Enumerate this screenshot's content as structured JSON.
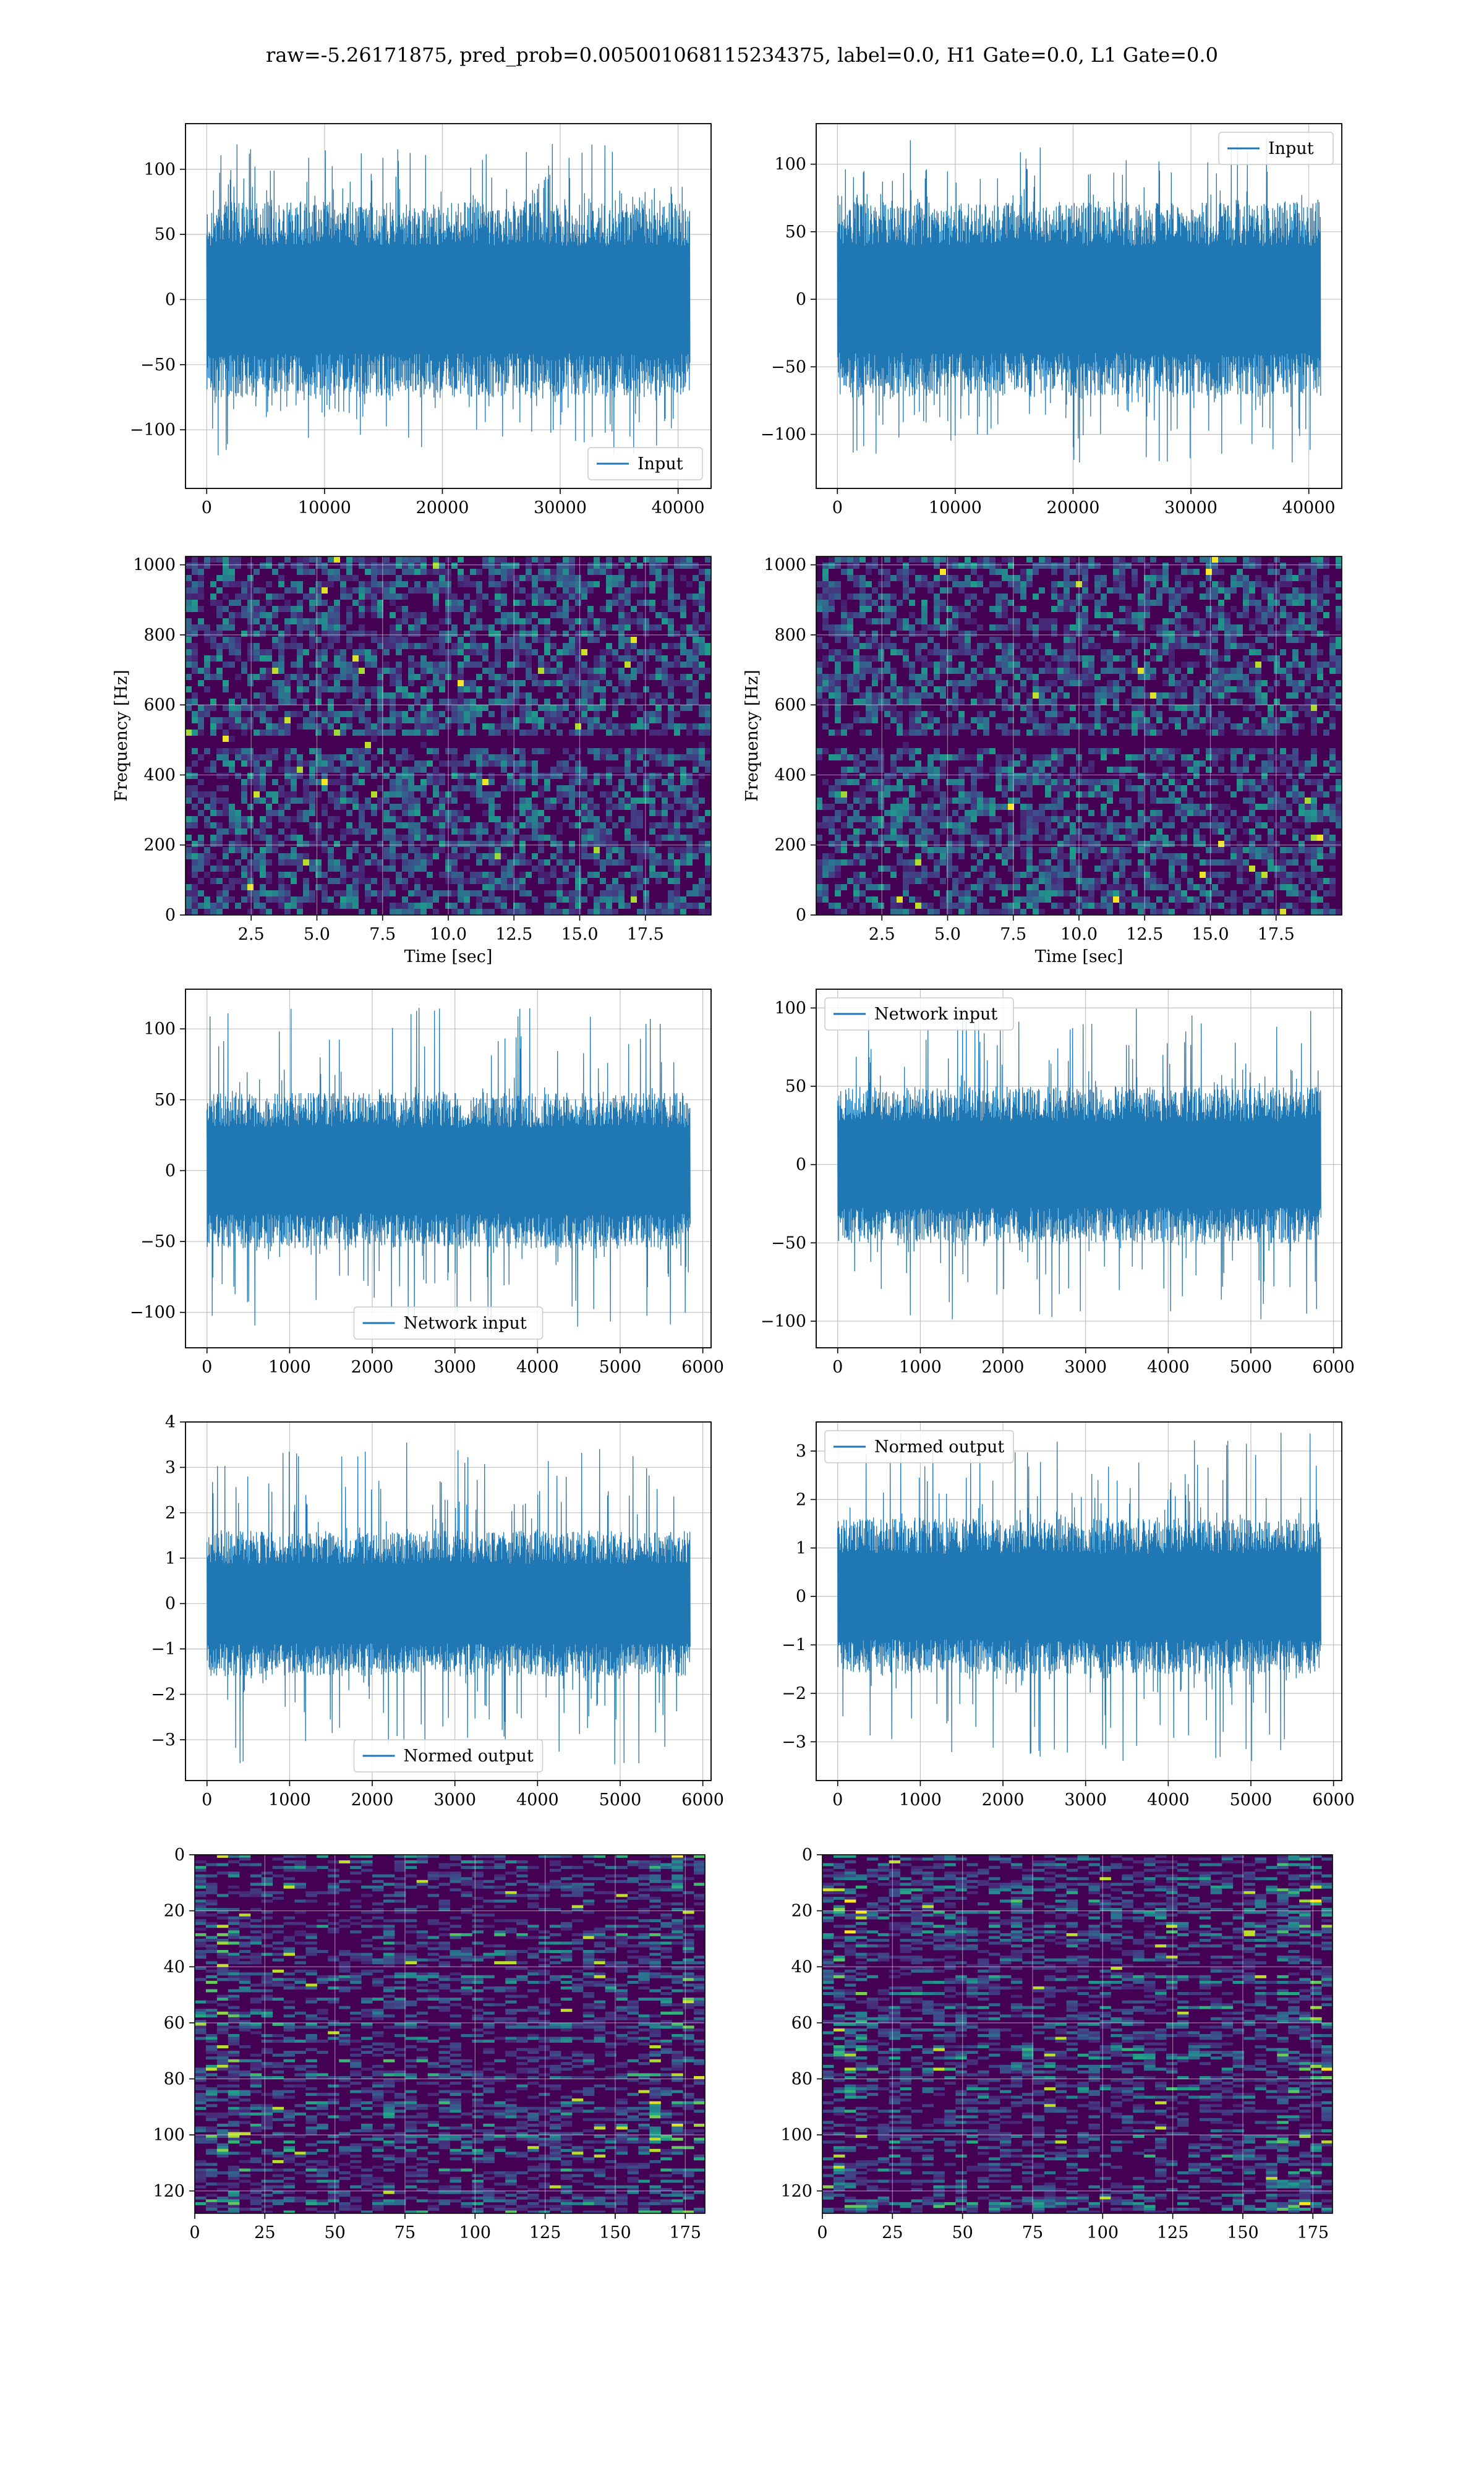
{
  "figure": {
    "title": "raw=-5.26171875, pred_prob=0.005001068115234375, label=0.0, H1 Gate=0.0, L1 Gate=0.0"
  },
  "colors": {
    "line": "#1f77b4",
    "grid": "#b0b0b0",
    "viridis_dark": "#440154",
    "viridis_mid": "#21918c",
    "viridis_bright": "#fde725"
  },
  "chart_data": [
    {
      "id": "input-h1",
      "type": "line",
      "series": [
        {
          "name": "Input",
          "values_summary": "noise roughly between -130 and 125"
        }
      ],
      "x_range": [
        0,
        40960
      ],
      "xlim": [
        -1800,
        42800
      ],
      "ylim": [
        -145,
        135
      ],
      "xticks": [
        "0",
        "10000",
        "20000",
        "30000",
        "40000"
      ],
      "xtick_values": [
        0,
        10000,
        20000,
        30000,
        40000
      ],
      "yticks": [
        "−100",
        "−50",
        "0",
        "50",
        "100"
      ],
      "ytick_values": [
        -100,
        -50,
        0,
        50,
        100
      ],
      "envelope": 75,
      "peak": 120,
      "legend": "lower right",
      "legend_label": "Input",
      "grid": true
    },
    {
      "id": "input-l1",
      "type": "line",
      "series": [
        {
          "name": "Input",
          "values_summary": "noise roughly between -125 and 125"
        }
      ],
      "x_range": [
        0,
        40960
      ],
      "xlim": [
        -1800,
        42800
      ],
      "ylim": [
        -140,
        130
      ],
      "xticks": [
        "0",
        "10000",
        "20000",
        "30000",
        "40000"
      ],
      "xtick_values": [
        0,
        10000,
        20000,
        30000,
        40000
      ],
      "yticks": [
        "−100",
        "−50",
        "0",
        "50",
        "100"
      ],
      "ytick_values": [
        -100,
        -50,
        0,
        50,
        100
      ],
      "envelope": 72,
      "peak": 122,
      "legend": "upper right",
      "legend_label": "Input",
      "grid": true
    },
    {
      "id": "spectrogram-h1",
      "type": "heatmap",
      "xlabel": "Time [sec]",
      "ylabel": "Frequency [Hz]",
      "xlim": [
        0,
        20
      ],
      "ylim": [
        0,
        1024
      ],
      "xticks": [
        "2.5",
        "5.0",
        "7.5",
        "10.0",
        "12.5",
        "15.0",
        "17.5"
      ],
      "xtick_values": [
        2.5,
        5.0,
        7.5,
        10.0,
        12.5,
        15.0,
        17.5
      ],
      "yticks": [
        "0",
        "200",
        "400",
        "600",
        "800",
        "1000"
      ],
      "ytick_values": [
        0,
        200,
        400,
        600,
        800,
        1000
      ],
      "colormap": "viridis",
      "dark_band_hz": 500,
      "grid": true
    },
    {
      "id": "spectrogram-l1",
      "type": "heatmap",
      "xlabel": "Time [sec]",
      "ylabel": "Frequency [Hz]",
      "xlim": [
        0,
        20
      ],
      "ylim": [
        0,
        1024
      ],
      "xticks": [
        "2.5",
        "5.0",
        "7.5",
        "10.0",
        "12.5",
        "15.0",
        "17.5"
      ],
      "xtick_values": [
        2.5,
        5.0,
        7.5,
        10.0,
        12.5,
        15.0,
        17.5
      ],
      "yticks": [
        "0",
        "200",
        "400",
        "600",
        "800",
        "1000"
      ],
      "ytick_values": [
        0,
        200,
        400,
        600,
        800,
        1000
      ],
      "colormap": "viridis",
      "dark_band_hz": 500,
      "grid": true
    },
    {
      "id": "network-input-h1",
      "type": "line",
      "series": [
        {
          "name": "Network input",
          "values_summary": "noise roughly between -115 and 120"
        }
      ],
      "x_range": [
        0,
        5840
      ],
      "xlim": [
        -260,
        6100
      ],
      "ylim": [
        -125,
        128
      ],
      "xticks": [
        "0",
        "1000",
        "2000",
        "3000",
        "4000",
        "5000",
        "6000"
      ],
      "xtick_values": [
        0,
        1000,
        2000,
        3000,
        4000,
        5000,
        6000
      ],
      "yticks": [
        "−100",
        "−50",
        "0",
        "50",
        "100"
      ],
      "ytick_values": [
        -100,
        -50,
        0,
        50,
        100
      ],
      "envelope": 55,
      "peak": 115,
      "legend": "lower center",
      "legend_label": "Network input",
      "grid": true
    },
    {
      "id": "network-input-l1",
      "type": "line",
      "series": [
        {
          "name": "Network input",
          "values_summary": "noise roughly between -105 and 100"
        }
      ],
      "x_range": [
        0,
        5840
      ],
      "xlim": [
        -260,
        6100
      ],
      "ylim": [
        -117,
        112
      ],
      "xticks": [
        "0",
        "1000",
        "2000",
        "3000",
        "4000",
        "5000",
        "6000"
      ],
      "xtick_values": [
        0,
        1000,
        2000,
        3000,
        4000,
        5000,
        6000
      ],
      "yticks": [
        "−100",
        "−50",
        "0",
        "50",
        "100"
      ],
      "ytick_values": [
        -100,
        -50,
        0,
        50,
        100
      ],
      "envelope": 50,
      "peak": 100,
      "legend": "upper left",
      "legend_label": "Network input",
      "grid": true
    },
    {
      "id": "normed-output-h1",
      "type": "line",
      "series": [
        {
          "name": "Normed output",
          "values_summary": "noise roughly between -3.6 and 3.7"
        }
      ],
      "x_range": [
        0,
        5840
      ],
      "xlim": [
        -260,
        6100
      ],
      "ylim": [
        -3.9,
        4.0
      ],
      "xticks": [
        "0",
        "1000",
        "2000",
        "3000",
        "4000",
        "5000",
        "6000"
      ],
      "xtick_values": [
        0,
        1000,
        2000,
        3000,
        4000,
        5000,
        6000
      ],
      "yticks": [
        "−3",
        "−2",
        "−1",
        "0",
        "1",
        "2",
        "3",
        "4"
      ],
      "ytick_values": [
        -3,
        -2,
        -1,
        0,
        1,
        2,
        3,
        4
      ],
      "envelope": 1.6,
      "peak": 3.6,
      "legend": "lower center",
      "legend_label": "Normed output",
      "grid": true
    },
    {
      "id": "normed-output-l1",
      "type": "line",
      "series": [
        {
          "name": "Normed output",
          "values_summary": "noise roughly between -3.4 and 3.4"
        }
      ],
      "x_range": [
        0,
        5840
      ],
      "xlim": [
        -260,
        6100
      ],
      "ylim": [
        -3.8,
        3.6
      ],
      "xticks": [
        "0",
        "1000",
        "2000",
        "3000",
        "4000",
        "5000",
        "6000"
      ],
      "xtick_values": [
        0,
        1000,
        2000,
        3000,
        4000,
        5000,
        6000
      ],
      "yticks": [
        "−3",
        "−2",
        "−1",
        "0",
        "1",
        "2",
        "3"
      ],
      "ytick_values": [
        -3,
        -2,
        -1,
        0,
        1,
        2,
        3
      ],
      "envelope": 1.6,
      "peak": 3.4,
      "legend": "upper left",
      "legend_label": "Normed output",
      "grid": true
    },
    {
      "id": "feature-map-h1",
      "type": "heatmap",
      "xlim": [
        0,
        182
      ],
      "ylim": [
        0,
        128
      ],
      "y_inverted": true,
      "xticks": [
        "0",
        "25",
        "50",
        "75",
        "100",
        "125",
        "150",
        "175"
      ],
      "xtick_values": [
        0,
        25,
        50,
        75,
        100,
        125,
        150,
        175
      ],
      "yticks": [
        "0",
        "20",
        "40",
        "60",
        "80",
        "100",
        "120"
      ],
      "ytick_values": [
        0,
        20,
        40,
        60,
        80,
        100,
        120
      ],
      "colormap": "viridis",
      "grid": true
    },
    {
      "id": "feature-map-l1",
      "type": "heatmap",
      "xlim": [
        0,
        182
      ],
      "ylim": [
        0,
        128
      ],
      "y_inverted": true,
      "xticks": [
        "0",
        "25",
        "50",
        "75",
        "100",
        "125",
        "150",
        "175"
      ],
      "xtick_values": [
        0,
        25,
        50,
        75,
        100,
        125,
        150,
        175
      ],
      "yticks": [
        "0",
        "20",
        "40",
        "60",
        "80",
        "100",
        "120"
      ],
      "ytick_values": [
        0,
        20,
        40,
        60,
        80,
        100,
        120
      ],
      "colormap": "viridis",
      "grid": true
    }
  ]
}
